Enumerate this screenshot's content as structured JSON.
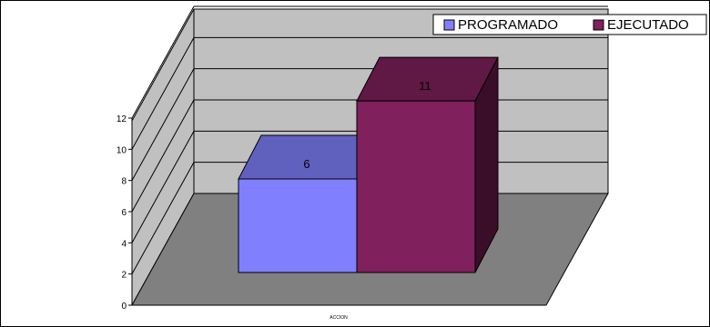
{
  "chart_data": {
    "type": "bar",
    "style": "3d-clustered",
    "categories": [
      "ACCION"
    ],
    "series": [
      {
        "name": "PROGRAMADO",
        "values": [
          6
        ],
        "color": "#8080ff"
      },
      {
        "name": "EJECUTADO",
        "values": [
          11
        ],
        "color": "#80205c"
      }
    ],
    "data_labels": [
      "6",
      "11"
    ],
    "ylim": [
      0,
      12
    ],
    "y_ticks": [
      0,
      2,
      4,
      6,
      8,
      10,
      12
    ],
    "xlabel": "ACCION",
    "ylabel": "",
    "title": "",
    "legend": "top-right",
    "grid": true
  },
  "colors": {
    "floor": "#808080",
    "back_wall": "#c0c0c0",
    "side_wall": "#c0c0c0",
    "gridline": "#000000"
  }
}
